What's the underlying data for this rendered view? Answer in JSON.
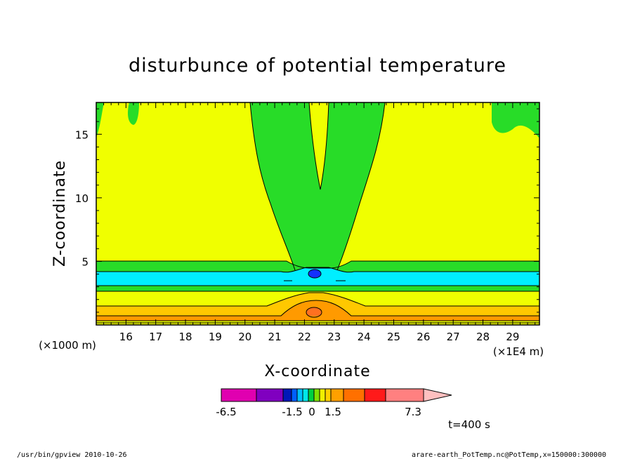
{
  "chart_data": {
    "type": "heatmap",
    "title": "disturbunce of potential temperature",
    "xlabel": "X-coordinate",
    "ylabel": "Z-coordinate",
    "x_unit_left": "(×1000 m)",
    "x_unit_right": "(×1E4 m)",
    "x_ticks": [
      "16",
      "17",
      "18",
      "19",
      "20",
      "21",
      "22",
      "23",
      "24",
      "25",
      "26",
      "27",
      "28",
      "29"
    ],
    "y_ticks": [
      "5",
      "10",
      "15"
    ],
    "xlim": [
      15.0,
      29.9
    ],
    "ylim": [
      0,
      17.5
    ],
    "colorbar": {
      "labels": [
        "-6.5",
        "-1.5",
        "0",
        "1.5",
        "7.3"
      ],
      "colors": [
        "#e000b0",
        "#8000c0",
        "#0018b8",
        "#0060ff",
        "#00c0ff",
        "#00e8e8",
        "#00d040",
        "#80e000",
        "#f0f000",
        "#ffd000",
        "#ffa000",
        "#ff7000",
        "#ff1a1a",
        "#ff8080",
        "#ffc0c0"
      ]
    },
    "colors": {
      "background_band": "#f0ff00",
      "green": "#28dc28",
      "cyan": "#00eeff",
      "blue": "#1430ff",
      "light_orange": "#ffc800",
      "orange": "#ff9a00",
      "deep_orange": "#ff7020"
    }
  },
  "annotations": {
    "time": "t=400 s",
    "footer_left": "/usr/bin/gpview   2010-10-26",
    "footer_right": "arare-earth_PotTemp.nc@PotTemp,x=150000:300000"
  }
}
